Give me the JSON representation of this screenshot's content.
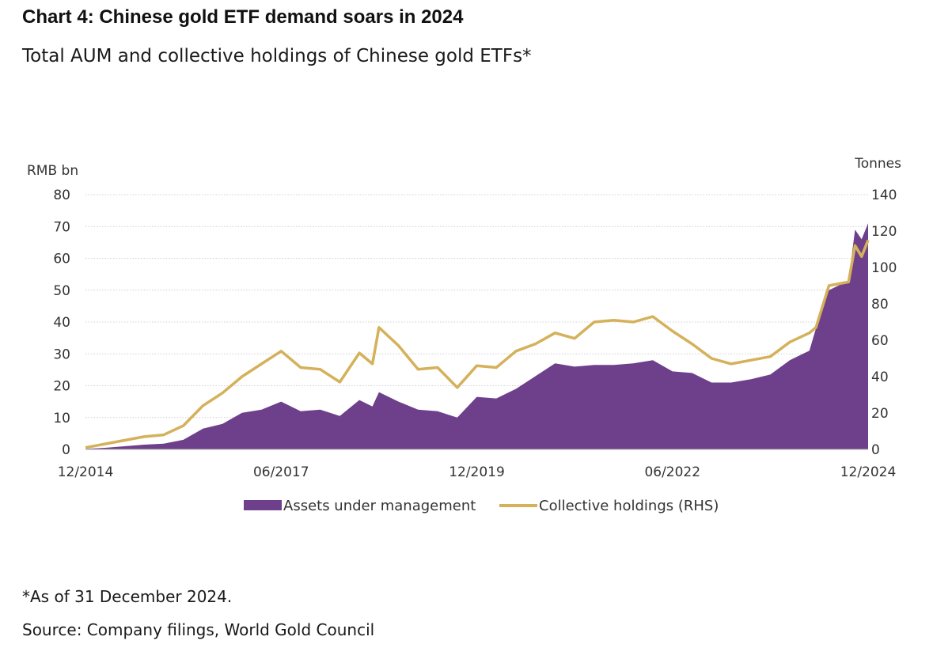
{
  "title": "Chart 4: Chinese gold ETF demand soars in 2024",
  "subtitle": "Total AUM and collective holdings of Chinese gold ETFs*",
  "footnote": "*As of 31 December 2024.",
  "source": "Source: Company filings, World Gold Council",
  "colors": {
    "aum": "#6e3f8a",
    "holdings": "#d4b15a",
    "grid": "#d0d0d0"
  },
  "chart_data": {
    "type": "area",
    "x_ticks": [
      "12/2014",
      "06/2017",
      "12/2019",
      "06/2022",
      "12/2024"
    ],
    "x_range": [
      "2014-12",
      "2024-12"
    ],
    "left_axis": {
      "label": "RMB bn",
      "ticks": [
        "0",
        "10",
        "20",
        "30",
        "40",
        "50",
        "60",
        "70",
        "80"
      ],
      "range": [
        0,
        80
      ]
    },
    "right_axis": {
      "label": "Tonnes",
      "ticks": [
        "0",
        "20",
        "40",
        "60",
        "80",
        "100",
        "120",
        "140"
      ],
      "range": [
        0,
        140
      ]
    },
    "grid": "horizontal dotted",
    "legend_position": "bottom",
    "series": [
      {
        "name": "Assets under management",
        "axis": "left",
        "type": "area",
        "values": [
          [
            "2014-12",
            0.2
          ],
          [
            "2015-03",
            0.5
          ],
          [
            "2015-06",
            1.0
          ],
          [
            "2015-09",
            1.5
          ],
          [
            "2015-12",
            1.8
          ],
          [
            "2016-03",
            3.0
          ],
          [
            "2016-06",
            6.5
          ],
          [
            "2016-09",
            8.0
          ],
          [
            "2016-12",
            11.5
          ],
          [
            "2017-03",
            12.5
          ],
          [
            "2017-06",
            15.0
          ],
          [
            "2017-09",
            12.0
          ],
          [
            "2017-12",
            12.5
          ],
          [
            "2018-03",
            10.5
          ],
          [
            "2018-06",
            15.5
          ],
          [
            "2018-08",
            13.5
          ],
          [
            "2018-09",
            18.0
          ],
          [
            "2018-12",
            15.0
          ],
          [
            "2019-03",
            12.5
          ],
          [
            "2019-06",
            12.0
          ],
          [
            "2019-09",
            10.0
          ],
          [
            "2019-12",
            16.5
          ],
          [
            "2020-03",
            16.0
          ],
          [
            "2020-06",
            19.0
          ],
          [
            "2020-09",
            23.0
          ],
          [
            "2020-12",
            27.0
          ],
          [
            "2021-03",
            26.0
          ],
          [
            "2021-06",
            26.5
          ],
          [
            "2021-09",
            26.5
          ],
          [
            "2021-12",
            27.0
          ],
          [
            "2022-03",
            28.0
          ],
          [
            "2022-06",
            24.5
          ],
          [
            "2022-09",
            24.0
          ],
          [
            "2022-12",
            21.0
          ],
          [
            "2023-03",
            21.0
          ],
          [
            "2023-06",
            22.0
          ],
          [
            "2023-09",
            23.5
          ],
          [
            "2023-12",
            28.0
          ],
          [
            "2024-03",
            31.0
          ],
          [
            "2024-04",
            38.0
          ],
          [
            "2024-06",
            50.0
          ],
          [
            "2024-09",
            53.0
          ],
          [
            "2024-10",
            69.0
          ],
          [
            "2024-11",
            66.0
          ],
          [
            "2024-12",
            71.0
          ]
        ]
      },
      {
        "name": "Collective holdings (RHS)",
        "axis": "right",
        "type": "line",
        "values": [
          [
            "2014-12",
            1.0
          ],
          [
            "2015-03",
            3.0
          ],
          [
            "2015-06",
            5.0
          ],
          [
            "2015-09",
            7.0
          ],
          [
            "2015-12",
            8.0
          ],
          [
            "2016-03",
            13.0
          ],
          [
            "2016-06",
            24.0
          ],
          [
            "2016-09",
            31.0
          ],
          [
            "2016-12",
            40.0
          ],
          [
            "2017-03",
            47.0
          ],
          [
            "2017-06",
            54.0
          ],
          [
            "2017-09",
            45.0
          ],
          [
            "2017-12",
            44.0
          ],
          [
            "2018-03",
            37.0
          ],
          [
            "2018-06",
            53.0
          ],
          [
            "2018-08",
            47.0
          ],
          [
            "2018-09",
            67.0
          ],
          [
            "2018-12",
            57.0
          ],
          [
            "2019-03",
            44.0
          ],
          [
            "2019-06",
            45.0
          ],
          [
            "2019-09",
            34.0
          ],
          [
            "2019-12",
            46.0
          ],
          [
            "2020-03",
            45.0
          ],
          [
            "2020-06",
            54.0
          ],
          [
            "2020-09",
            58.0
          ],
          [
            "2020-12",
            64.0
          ],
          [
            "2021-03",
            61.0
          ],
          [
            "2021-06",
            70.0
          ],
          [
            "2021-09",
            71.0
          ],
          [
            "2021-12",
            70.0
          ],
          [
            "2022-03",
            73.0
          ],
          [
            "2022-06",
            65.0
          ],
          [
            "2022-09",
            58.0
          ],
          [
            "2022-12",
            50.0
          ],
          [
            "2023-03",
            47.0
          ],
          [
            "2023-06",
            49.0
          ],
          [
            "2023-09",
            51.0
          ],
          [
            "2023-12",
            59.0
          ],
          [
            "2024-03",
            64.0
          ],
          [
            "2024-04",
            67.0
          ],
          [
            "2024-06",
            90.0
          ],
          [
            "2024-09",
            92.0
          ],
          [
            "2024-10",
            112.0
          ],
          [
            "2024-11",
            106.0
          ],
          [
            "2024-12",
            115.0
          ]
        ]
      }
    ]
  }
}
